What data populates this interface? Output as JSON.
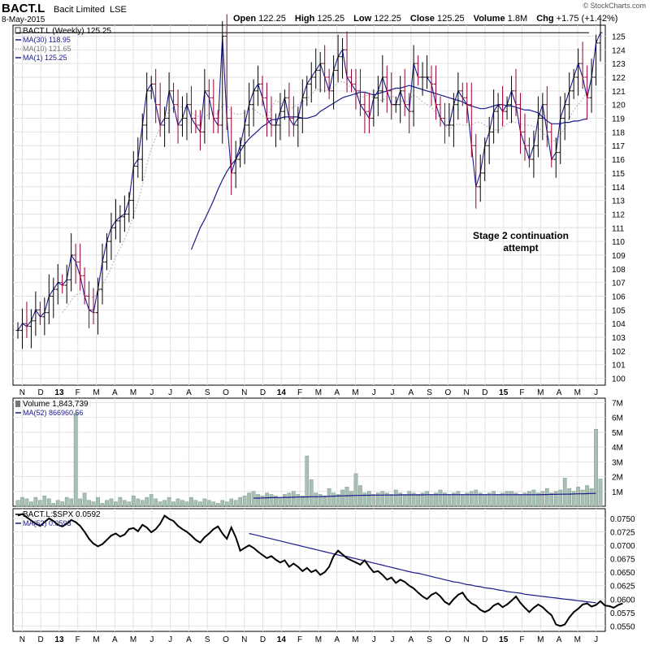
{
  "header": {
    "symbol": "BACT.L",
    "company": "Bacit Limited",
    "exchange": "LSE",
    "date": "8-May-2015",
    "open_label": "Open",
    "open": "122.25",
    "high_label": "High",
    "high": "125.25",
    "low_label": "Low",
    "low": "122.25",
    "close_label": "Close",
    "close": "125.25",
    "volume_label": "Volume",
    "volume": "1.8M",
    "chg_label": "Chg",
    "chg": "+1.75 (+1.42%)",
    "watermark": "© StockCharts.com"
  },
  "colors": {
    "up": "#000000",
    "down": "#990033",
    "ma30": "#1a1a8c",
    "ma10": "#b0b0b0",
    "volume_bar": "#a8c0b4",
    "volume_bar_stroke": "#6f8a7c",
    "grid": "#e2e2e2"
  },
  "chart_data": [
    {
      "type": "ohlc",
      "title": "BACT.L (Weekly) 125.25",
      "legend": [
        {
          "label": "MA(30) 118.95",
          "color": "#1a1a8c",
          "style": "solid"
        },
        {
          "label": "MA(10) 121.65",
          "color": "#b0b0b0",
          "style": "dotted"
        },
        {
          "label": "MA(1) 125.25",
          "color": "#1a1a8c",
          "style": "solid"
        }
      ],
      "ylim": [
        99.5,
        125.8
      ],
      "yticks": [
        100,
        101,
        102,
        103,
        104,
        105,
        106,
        107,
        108,
        109,
        110,
        111,
        112,
        113,
        114,
        115,
        116,
        117,
        118,
        119,
        120,
        121,
        122,
        123,
        124,
        125
      ],
      "x_months": [
        "N",
        "D",
        "13",
        "F",
        "M",
        "A",
        "M",
        "J",
        "J",
        "A",
        "S",
        "O",
        "N",
        "D",
        "14",
        "F",
        "M",
        "A",
        "M",
        "J",
        "J",
        "A",
        "S",
        "O",
        "N",
        "D",
        "15",
        "F",
        "M",
        "A",
        "M",
        "J"
      ],
      "closes": [
        103.5,
        104,
        103.8,
        104.2,
        105,
        104.5,
        104.8,
        106,
        106.5,
        107,
        106.8,
        107.2,
        109,
        108.5,
        107.5,
        106,
        105,
        104.8,
        106.5,
        108.5,
        110,
        111,
        111.5,
        111.8,
        112,
        113,
        115.5,
        116,
        118.5,
        121,
        121.5,
        120,
        118.5,
        119,
        121,
        120,
        118.5,
        119,
        120,
        119,
        118.5,
        118,
        121,
        120.5,
        119,
        118.5,
        125,
        119,
        115,
        116,
        117,
        118.5,
        120,
        121,
        121.5,
        120.5,
        119,
        118.5,
        118.5,
        119.5,
        120.5,
        119,
        118.5,
        119,
        120.5,
        121.5,
        122,
        122.5,
        123,
        122,
        121,
        122.5,
        123.5,
        124,
        122,
        121.5,
        121,
        120,
        119.5,
        119,
        120.5,
        121,
        122,
        121,
        120,
        120,
        121,
        120,
        119.5,
        123,
        122,
        122,
        122,
        121.5,
        120,
        119,
        118.5,
        118.5,
        120,
        121,
        120.5,
        120,
        117,
        114,
        115,
        117,
        118,
        119.5,
        120,
        119.5,
        120,
        121,
        120,
        118,
        117,
        116,
        117,
        119,
        120,
        118,
        116,
        116.5,
        119,
        120,
        121,
        122,
        123,
        122,
        120.5,
        122,
        124.5,
        125.25
      ],
      "ma30": [
        null,
        null,
        null,
        null,
        null,
        null,
        null,
        null,
        null,
        null,
        null,
        null,
        null,
        null,
        null,
        null,
        null,
        null,
        null,
        null,
        null,
        null,
        null,
        null,
        null,
        null,
        null,
        null,
        null,
        null,
        null,
        null,
        null,
        null,
        null,
        null,
        null,
        null,
        null,
        109.4,
        110.2,
        111,
        111.6,
        112.3,
        113,
        113.8,
        114.5,
        115.1,
        115.6,
        116,
        116.6,
        117.1,
        117.5,
        117.8,
        118.1,
        118.4,
        118.6,
        118.9,
        118.9,
        119,
        119.1,
        119.1,
        119.1,
        119.1,
        119,
        119,
        119.1,
        119.2,
        119.5,
        119.7,
        119.9,
        120.1,
        120.3,
        120.5,
        120.6,
        120.7,
        120.8,
        120.9,
        120.9,
        120.8,
        120.7,
        120.8,
        120.9,
        121,
        121.1,
        121.2,
        121.2,
        121.3,
        121.4,
        121.3,
        121.2,
        121.1,
        121,
        120.9,
        120.8,
        120.7,
        120.6,
        120.5,
        120.4,
        120.3,
        120.2,
        120,
        119.9,
        119.8,
        119.7,
        119.7,
        119.8,
        119.9,
        120,
        120,
        119.9,
        119.9,
        119.8,
        119.7,
        119.6,
        119.6,
        119.5,
        119.4,
        119.1,
        118.8,
        118.6,
        118.6,
        118.6,
        118.7,
        118.7,
        118.8,
        118.8,
        118.9,
        118.95
      ],
      "ma10": [
        null,
        null,
        null,
        null,
        null,
        null,
        null,
        null,
        null,
        null,
        104.8,
        105.2,
        105.7,
        106.1,
        106.2,
        106.1,
        106,
        105.9,
        106.2,
        106.8,
        107.4,
        108.1,
        108.9,
        109.5,
        110.2,
        110.9,
        111.9,
        112.9,
        114.1,
        115.6,
        116.8,
        117.6,
        118.3,
        119,
        119.5,
        119.8,
        119.9,
        119.8,
        119.7,
        119.4,
        119.2,
        119.1,
        119.1,
        119.3,
        119.4,
        119.3,
        120,
        120,
        119.4,
        119.3,
        119.3,
        119.4,
        119.6,
        119.7,
        119.4,
        119.2,
        118.9,
        119.8,
        120.3,
        120.1,
        119.9,
        119.7,
        119.8,
        120,
        120.2,
        120.4,
        120.7,
        121.1,
        121.1,
        121,
        121.1,
        121.3,
        121.6,
        121.7,
        121.5,
        121.2,
        120.7,
        120.5,
        120.6,
        120.7,
        120.5,
        120.3,
        120.3,
        120.5,
        120.6,
        120.5,
        120.3,
        120.1,
        120.4,
        120.7,
        120.5,
        120.2,
        120,
        119.8,
        119.4,
        119,
        118.5,
        118.2,
        118.4,
        118.6,
        118.5,
        118.5,
        118.5,
        118.7,
        118.7,
        118.5,
        118.3,
        118.2,
        118.1,
        118.3,
        118.6,
        118.8,
        118.7,
        118.6,
        118.5,
        118.5,
        118.4,
        118.3,
        118,
        117.6,
        117.3,
        117.4,
        117.8,
        118.3,
        119,
        119.6,
        120,
        120.4,
        121,
        121.65
      ],
      "annotation": "Stage 2 continuation attempt",
      "annotation_lines": [
        "Stage 2 continuation",
        "attempt"
      ],
      "resistance_level": 125.25
    },
    {
      "type": "bar",
      "title": "Volume 1,843,739",
      "legend": [
        {
          "label": "MA(52) 866960.56",
          "color": "#1a1a8c"
        }
      ],
      "ylim": [
        0,
        7.3
      ],
      "yticks": [
        1,
        2,
        3,
        4,
        5,
        6,
        7
      ],
      "ytick_labels": [
        "1M",
        "2M",
        "3M",
        "4M",
        "5M",
        "6M",
        "7M"
      ],
      "values": [
        0.4,
        0.6,
        0.5,
        0.3,
        0.6,
        0.4,
        0.7,
        0.5,
        0.2,
        0.4,
        0.3,
        0.6,
        0.5,
        6.3,
        0.5,
        0.9,
        0.4,
        0.3,
        0.6,
        0.2,
        0.4,
        0.5,
        0.3,
        0.6,
        0.4,
        0.3,
        0.7,
        0.5,
        0.4,
        0.6,
        0.8,
        0.5,
        0.3,
        0.4,
        0.6,
        0.3,
        0.5,
        0.4,
        0.3,
        0.6,
        0.4,
        0.3,
        0.5,
        0.4,
        0.3,
        0.2,
        0.4,
        0.3,
        0.5,
        0.4,
        0.6,
        0.7,
        0.9,
        1.0,
        0.8,
        0.7,
        0.9,
        0.8,
        0.7,
        0.6,
        0.8,
        0.9,
        1.0,
        0.8,
        0.7,
        3.4,
        1.8,
        0.9,
        0.8,
        0.7,
        1.2,
        0.9,
        0.8,
        1.1,
        1.3,
        1.0,
        2.2,
        1.4,
        0.9,
        1.0,
        0.8,
        0.9,
        1.0,
        0.9,
        0.8,
        1.1,
        0.9,
        0.8,
        1.0,
        0.9,
        0.8,
        0.9,
        1.0,
        0.8,
        0.9,
        1.1,
        0.9,
        0.8,
        0.9,
        1.0,
        0.8,
        0.9,
        1.0,
        1.1,
        0.9,
        0.8,
        0.9,
        1.0,
        0.8,
        0.9,
        1.0,
        1.0,
        0.9,
        0.8,
        0.9,
        1.0,
        1.1,
        0.9,
        1.0,
        1.2,
        0.9,
        1.0,
        1.1,
        1.9,
        1.2,
        1.0,
        1.3,
        1.1,
        1.4,
        1.2,
        5.2,
        1.84
      ],
      "ma52": [
        null,
        null,
        null,
        null,
        null,
        null,
        null,
        null,
        null,
        null,
        null,
        null,
        null,
        null,
        null,
        null,
        null,
        null,
        null,
        null,
        null,
        null,
        null,
        null,
        null,
        null,
        null,
        null,
        null,
        null,
        null,
        null,
        null,
        null,
        null,
        null,
        null,
        null,
        null,
        null,
        null,
        null,
        null,
        null,
        null,
        null,
        null,
        null,
        null,
        null,
        null,
        null,
        null,
        0.55,
        0.55,
        0.56,
        0.57,
        0.58,
        0.58,
        0.59,
        0.6,
        0.6,
        0.61,
        0.62,
        0.62,
        0.63,
        0.64,
        0.64,
        0.65,
        0.66,
        0.67,
        0.68,
        0.69,
        0.7,
        0.71,
        0.72,
        0.73,
        0.73,
        0.74,
        0.74,
        0.75,
        0.75,
        0.75,
        0.76,
        0.76,
        0.76,
        0.77,
        0.77,
        0.77,
        0.77,
        0.77,
        0.77,
        0.78,
        0.78,
        0.78,
        0.78,
        0.78,
        0.78,
        0.78,
        0.78,
        0.78,
        0.78,
        0.78,
        0.78,
        0.78,
        0.78,
        0.78,
        0.78,
        0.78,
        0.78,
        0.78,
        0.78,
        0.78,
        0.78,
        0.78,
        0.78,
        0.78,
        0.78,
        0.79,
        0.79,
        0.8,
        0.8,
        0.81,
        0.82,
        0.82,
        0.83,
        0.84,
        0.84,
        0.85,
        0.86,
        0.87
      ]
    },
    {
      "type": "line",
      "title": "BACT.L:$SPX 0.0592",
      "legend": [
        {
          "label": "MA(52) 0.0593",
          "color": "#1a1a8c"
        }
      ],
      "ylim": [
        0.054,
        0.0768
      ],
      "yticks": [
        0.055,
        0.0575,
        0.06,
        0.0625,
        0.065,
        0.0675,
        0.07,
        0.0725,
        0.075
      ],
      "ytick_labels": [
        "0.0550",
        "0.0575",
        "0.0600",
        "0.0625",
        "0.0650",
        "0.0675",
        "0.0700",
        "0.0725",
        "0.0750"
      ],
      "values": [
        0.0755,
        0.0758,
        0.0752,
        0.0746,
        0.074,
        0.0736,
        0.0743,
        0.075,
        0.0745,
        0.0738,
        0.0735,
        0.074,
        0.0747,
        0.0743,
        0.0736,
        0.0725,
        0.0712,
        0.0703,
        0.0698,
        0.0702,
        0.071,
        0.0718,
        0.0722,
        0.0716,
        0.072,
        0.073,
        0.0732,
        0.0726,
        0.0738,
        0.0733,
        0.0724,
        0.073,
        0.074,
        0.0755,
        0.0749,
        0.0745,
        0.0736,
        0.073,
        0.0725,
        0.0718,
        0.071,
        0.0705,
        0.0715,
        0.0722,
        0.073,
        0.0735,
        0.0722,
        0.0712,
        0.0733,
        0.0715,
        0.069,
        0.0695,
        0.07,
        0.0695,
        0.0688,
        0.0682,
        0.0676,
        0.068,
        0.0673,
        0.0668,
        0.0672,
        0.066,
        0.0666,
        0.066,
        0.0652,
        0.0658,
        0.065,
        0.0654,
        0.0645,
        0.065,
        0.066,
        0.068,
        0.069,
        0.0683,
        0.0676,
        0.0672,
        0.0668,
        0.0664,
        0.0672,
        0.066,
        0.065,
        0.0652,
        0.0645,
        0.0636,
        0.064,
        0.063,
        0.0636,
        0.0632,
        0.0625,
        0.062,
        0.0612,
        0.0605,
        0.06,
        0.0608,
        0.0612,
        0.0605,
        0.0595,
        0.059,
        0.06,
        0.0608,
        0.0612,
        0.06,
        0.0592,
        0.0588,
        0.058,
        0.0576,
        0.058,
        0.0588,
        0.0592,
        0.0585,
        0.059,
        0.0597,
        0.0605,
        0.0593,
        0.0584,
        0.0576,
        0.0584,
        0.059,
        0.0585,
        0.0577,
        0.057,
        0.0553,
        0.055,
        0.0553,
        0.0566,
        0.0576,
        0.0582,
        0.059,
        0.0592,
        0.0586,
        0.0589,
        0.0596,
        0.0588,
        0.0587,
        0.0584,
        0.0589,
        0.0592
      ],
      "ma52": [
        null,
        null,
        null,
        null,
        null,
        null,
        null,
        null,
        null,
        null,
        null,
        null,
        null,
        null,
        null,
        null,
        null,
        null,
        null,
        null,
        null,
        null,
        null,
        null,
        null,
        null,
        null,
        null,
        null,
        null,
        null,
        null,
        null,
        null,
        null,
        null,
        null,
        null,
        null,
        null,
        null,
        null,
        null,
        null,
        null,
        null,
        null,
        null,
        null,
        null,
        null,
        null,
        0.0722,
        0.072,
        0.0718,
        0.0716,
        0.0714,
        0.0712,
        0.071,
        0.0708,
        0.0706,
        0.0704,
        0.0702,
        0.07,
        0.0698,
        0.0696,
        0.0694,
        0.0692,
        0.069,
        0.0688,
        0.0686,
        0.0684,
        0.0682,
        0.068,
        0.0679,
        0.0677,
        0.0675,
        0.0673,
        0.0671,
        0.0669,
        0.0667,
        0.0665,
        0.0663,
        0.0661,
        0.0659,
        0.0657,
        0.0655,
        0.0653,
        0.0651,
        0.0649,
        0.0648,
        0.0646,
        0.0644,
        0.0642,
        0.064,
        0.0638,
        0.0636,
        0.0634,
        0.0632,
        0.0631,
        0.0629,
        0.0627,
        0.0626,
        0.0624,
        0.0623,
        0.0621,
        0.062,
        0.0619,
        0.0617,
        0.0616,
        0.0614,
        0.0613,
        0.0612,
        0.0611,
        0.0609,
        0.0608,
        0.0607,
        0.0606,
        0.0605,
        0.0604,
        0.0603,
        0.0602,
        0.0601,
        0.06,
        0.0599,
        0.0598,
        0.0597,
        0.0596,
        0.0595,
        0.0594,
        0.0593
      ]
    }
  ]
}
